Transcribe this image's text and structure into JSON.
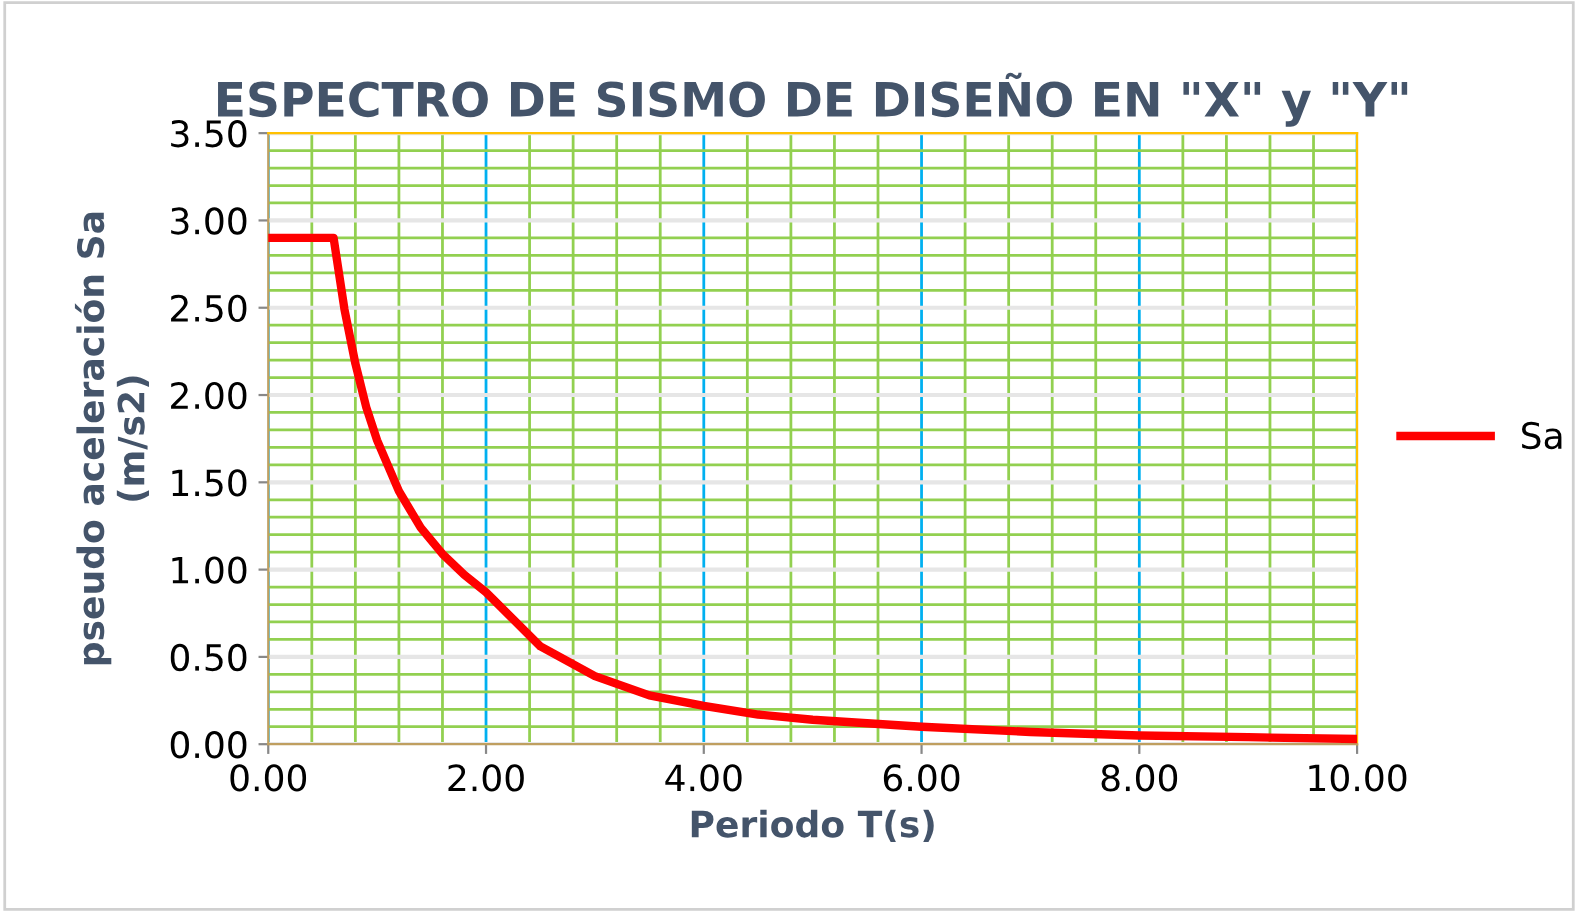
{
  "chart_data": {
    "type": "line",
    "title": "ESPECTRO DE SISMO DE DISEÑO EN \"X\" y \"Y\"",
    "xlabel": "Periodo T(s)",
    "ylabel": "pseudo aceleración Sa\n(m/s2)",
    "series": [
      {
        "name": "Sa",
        "color": "#ff0000",
        "x": [
          0,
          0.6,
          0.7,
          0.8,
          0.9,
          1.0,
          1.2,
          1.4,
          1.6,
          1.8,
          2.0,
          2.5,
          3.0,
          3.5,
          4.0,
          4.5,
          5.0,
          5.5,
          6.0,
          7.0,
          8.0,
          9.0,
          10.0
        ],
        "values": [
          2.9,
          2.9,
          2.49,
          2.18,
          1.93,
          1.74,
          1.45,
          1.24,
          1.09,
          0.97,
          0.87,
          0.56,
          0.39,
          0.28,
          0.22,
          0.17,
          0.14,
          0.12,
          0.1,
          0.07,
          0.05,
          0.04,
          0.03
        ]
      }
    ],
    "xlim": [
      0,
      10
    ],
    "ylim": [
      0,
      3.5
    ],
    "xticks": [
      {
        "value": 0,
        "label": "0.00"
      },
      {
        "value": 0.4,
        "label": null
      },
      {
        "value": 0.8,
        "label": null
      },
      {
        "value": 1.2,
        "label": null
      },
      {
        "value": 1.6,
        "label": null
      },
      {
        "value": 2,
        "label": "2.00"
      },
      {
        "value": 2.4,
        "label": null
      },
      {
        "value": 2.8,
        "label": null
      },
      {
        "value": 3.2,
        "label": null
      },
      {
        "value": 3.6,
        "label": null
      },
      {
        "value": 4,
        "label": "4.00"
      },
      {
        "value": 4.4,
        "label": null
      },
      {
        "value": 4.8,
        "label": null
      },
      {
        "value": 5.2,
        "label": null
      },
      {
        "value": 5.6,
        "label": null
      },
      {
        "value": 6,
        "label": "6.00"
      },
      {
        "value": 6.4,
        "label": null
      },
      {
        "value": 6.8,
        "label": null
      },
      {
        "value": 7.2,
        "label": null
      },
      {
        "value": 7.6,
        "label": null
      },
      {
        "value": 8,
        "label": "8.00"
      },
      {
        "value": 8.4,
        "label": null
      },
      {
        "value": 8.8,
        "label": null
      },
      {
        "value": 9.2,
        "label": null
      },
      {
        "value": 9.6,
        "label": null
      },
      {
        "value": 10,
        "label": "10.00"
      }
    ],
    "yticks": [
      {
        "value": 0,
        "label": "0.00"
      },
      {
        "value": 0.1,
        "label": null
      },
      {
        "value": 0.2,
        "label": null
      },
      {
        "value": 0.3,
        "label": null
      },
      {
        "value": 0.4,
        "label": null
      },
      {
        "value": 0.5,
        "label": "0.50"
      },
      {
        "value": 0.6,
        "label": null
      },
      {
        "value": 0.7,
        "label": null
      },
      {
        "value": 0.8,
        "label": null
      },
      {
        "value": 0.9,
        "label": null
      },
      {
        "value": 1,
        "label": "1.00"
      },
      {
        "value": 1.1,
        "label": null
      },
      {
        "value": 1.2,
        "label": null
      },
      {
        "value": 1.3,
        "label": null
      },
      {
        "value": 1.4,
        "label": null
      },
      {
        "value": 1.5,
        "label": "1.50"
      },
      {
        "value": 1.6,
        "label": null
      },
      {
        "value": 1.7,
        "label": null
      },
      {
        "value": 1.8,
        "label": null
      },
      {
        "value": 1.9,
        "label": null
      },
      {
        "value": 2,
        "label": "2.00"
      },
      {
        "value": 2.1,
        "label": null
      },
      {
        "value": 2.2,
        "label": null
      },
      {
        "value": 2.3,
        "label": null
      },
      {
        "value": 2.4,
        "label": null
      },
      {
        "value": 2.5,
        "label": "2.50"
      },
      {
        "value": 2.6,
        "label": null
      },
      {
        "value": 2.7,
        "label": null
      },
      {
        "value": 2.8,
        "label": null
      },
      {
        "value": 2.9,
        "label": null
      },
      {
        "value": 3,
        "label": "3.00"
      },
      {
        "value": 3.1,
        "label": null
      },
      {
        "value": 3.2,
        "label": null
      },
      {
        "value": 3.3,
        "label": null
      },
      {
        "value": 3.4,
        "label": null
      },
      {
        "value": 3.5,
        "label": "3.50"
      }
    ],
    "grid": true,
    "legend": "right",
    "marker": "none",
    "line_style": "solid"
  }
}
